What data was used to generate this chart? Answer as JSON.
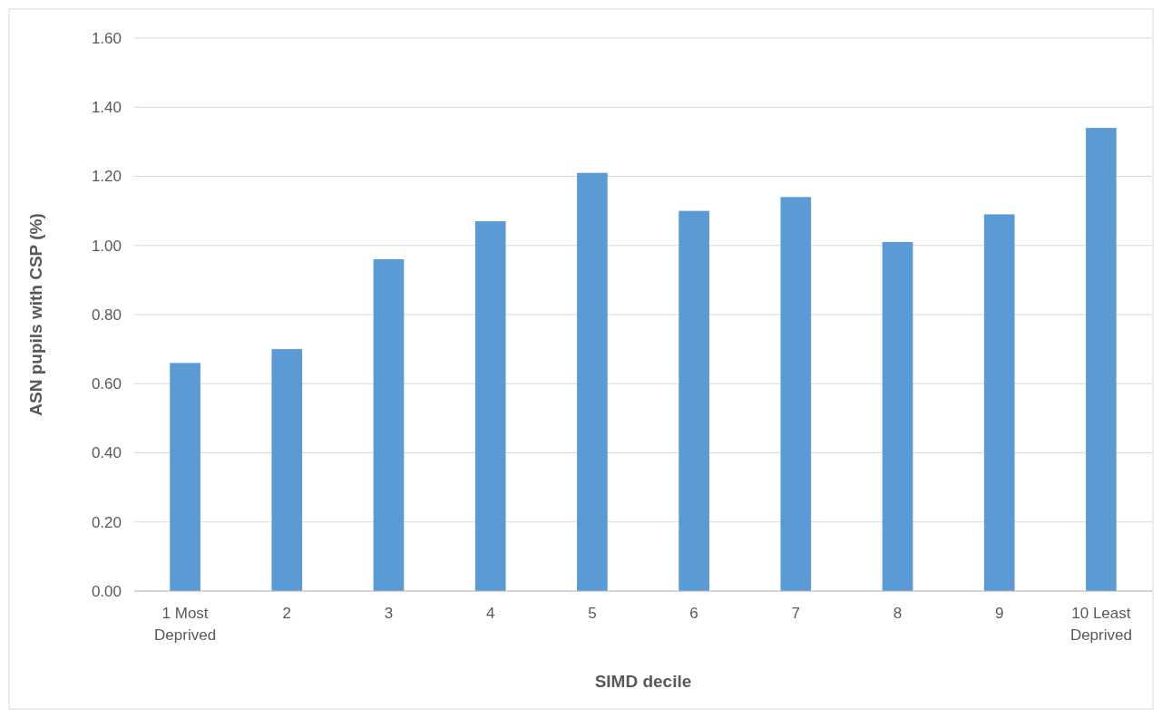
{
  "chart_data": {
    "type": "bar",
    "xlabel": "SIMD decile",
    "ylabel": "ASN pupils with CSP (%)",
    "categories": [
      "1 Most Deprived",
      "2",
      "3",
      "4",
      "5",
      "6",
      "7",
      "8",
      "9",
      "10 Least Deprived"
    ],
    "values": [
      0.66,
      0.7,
      0.96,
      1.07,
      1.21,
      1.1,
      1.14,
      1.01,
      1.09,
      1.34
    ],
    "color": "#5b9bd5",
    "ylim": [
      0,
      1.6
    ],
    "yticks": [
      {
        "value": 0,
        "label": "0.00"
      },
      {
        "value": 0.2,
        "label": "0.20"
      },
      {
        "value": 0.4,
        "label": "0.40"
      },
      {
        "value": 0.6,
        "label": "0.60"
      },
      {
        "value": 0.8,
        "label": "0.80"
      },
      {
        "value": 1.0,
        "label": "1.00"
      },
      {
        "value": 1.2,
        "label": "1.20"
      },
      {
        "value": 1.4,
        "label": "1.40"
      },
      {
        "value": 1.6,
        "label": "1.60"
      }
    ],
    "grid": "y"
  }
}
